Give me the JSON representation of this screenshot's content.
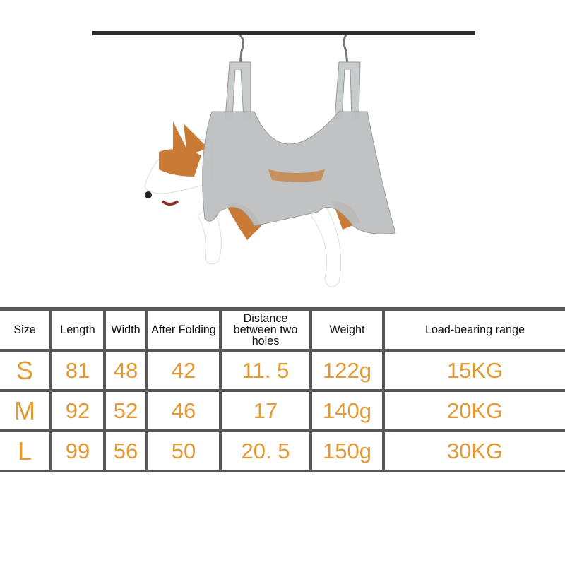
{
  "colors": {
    "accent": "#e39a34",
    "grid": "#5a5656",
    "header_text": "#111111"
  },
  "image": {
    "subject": "dog-in-grooming-hammock-icon"
  },
  "table": {
    "headers": [
      "Size",
      "Length",
      "Width",
      "After Folding",
      "Distance between two holes",
      "Weight",
      "Load-bearing range"
    ],
    "rows": [
      [
        "S",
        "81",
        "48",
        "42",
        "11. 5",
        "122g",
        "15KG"
      ],
      [
        "M",
        "92",
        "52",
        "46",
        "17",
        "140g",
        "20KG"
      ],
      [
        "L",
        "99",
        "56",
        "50",
        "20. 5",
        "150g",
        "30KG"
      ]
    ]
  }
}
